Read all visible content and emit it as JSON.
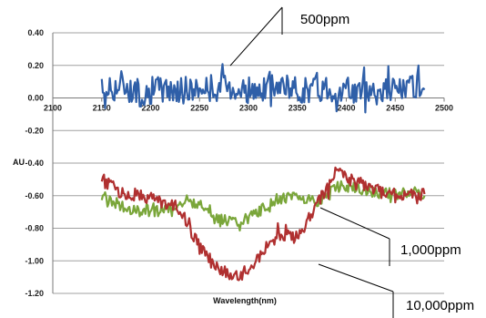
{
  "chart_data": {
    "type": "line",
    "xlabel": "Wavelength(nm)",
    "ylabel": "AU",
    "xlim": [
      2100,
      2500
    ],
    "ylim": [
      -1.2,
      0.4
    ],
    "x_ticks": [
      2100,
      2150,
      2200,
      2250,
      2300,
      2350,
      2400,
      2450,
      2500
    ],
    "y_ticks": [
      0.4,
      0.2,
      0.0,
      -0.2,
      -0.4,
      -0.6,
      -0.8,
      -1.0,
      -1.2
    ],
    "x_tick_labels": [
      "2100",
      "2150",
      "2200",
      "2250",
      "2300",
      "2350",
      "2400",
      "2450",
      "2500"
    ],
    "y_tick_labels": [
      "0.40",
      "0.20",
      "0.00",
      "-0.20",
      "-0.40",
      "-0.60",
      "-0.80",
      "-1.00",
      "-1.20"
    ],
    "grid": true,
    "series": [
      {
        "name": "500ppm",
        "color": "#2f5fa8",
        "x": [
          2150,
          2170,
          2190,
          2210,
          2230,
          2250,
          2270,
          2290,
          2310,
          2330,
          2350,
          2370,
          2390,
          2410,
          2430,
          2450,
          2470,
          2480
        ],
        "y": [
          0.05,
          0.07,
          0.03,
          0.06,
          0.04,
          0.05,
          0.08,
          0.06,
          0.04,
          0.07,
          0.05,
          0.06,
          0.05,
          0.04,
          0.07,
          0.05,
          0.06,
          0.05
        ]
      },
      {
        "name": "1,000ppm",
        "color": "#7aa63a",
        "x": [
          2150,
          2170,
          2190,
          2210,
          2230,
          2250,
          2270,
          2290,
          2310,
          2330,
          2350,
          2370,
          2390,
          2410,
          2430,
          2450,
          2470,
          2480
        ],
        "y": [
          -0.6,
          -0.66,
          -0.7,
          -0.68,
          -0.66,
          -0.64,
          -0.74,
          -0.77,
          -0.7,
          -0.62,
          -0.6,
          -0.64,
          -0.54,
          -0.55,
          -0.58,
          -0.59,
          -0.58,
          -0.6
        ]
      },
      {
        "name": "10,000ppm",
        "color": "#b03030",
        "x": [
          2150,
          2170,
          2190,
          2210,
          2230,
          2250,
          2270,
          2290,
          2310,
          2330,
          2350,
          2370,
          2390,
          2410,
          2430,
          2450,
          2470,
          2480
        ],
        "y": [
          -0.5,
          -0.58,
          -0.6,
          -0.63,
          -0.68,
          -0.92,
          -1.06,
          -1.1,
          -0.98,
          -0.84,
          -0.86,
          -0.66,
          -0.45,
          -0.52,
          -0.56,
          -0.58,
          -0.6,
          -0.59
        ]
      }
    ],
    "annotations": [
      "500ppm",
      "1,000ppm",
      "10,000ppm"
    ]
  }
}
